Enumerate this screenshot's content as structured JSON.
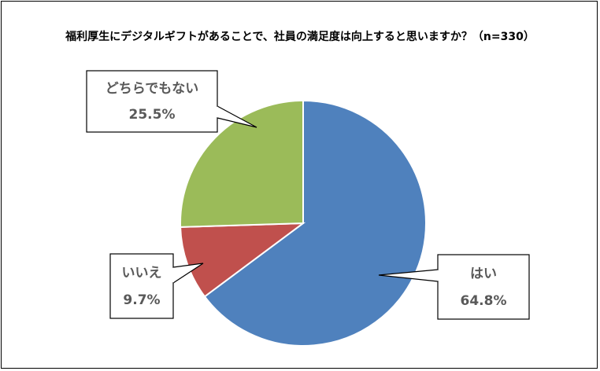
{
  "chart_data": {
    "type": "pie",
    "title": "福利厚生にデジタルギフトがあることで、社員の満足度は向上すると思いますか？（n=330）",
    "slices": [
      {
        "label": "はい",
        "value": 64.8,
        "value_label": "64.8%",
        "color": "#4F81BD"
      },
      {
        "label": "いいえ",
        "value": 9.7,
        "value_label": "9.7%",
        "color": "#C0504D"
      },
      {
        "label": "どちらでもない",
        "value": 25.5,
        "value_label": "25.5%",
        "color": "#9BBB59"
      }
    ],
    "start_angle": "12 o'clock",
    "direction": "clockwise",
    "legend": "none (callout labels)"
  }
}
